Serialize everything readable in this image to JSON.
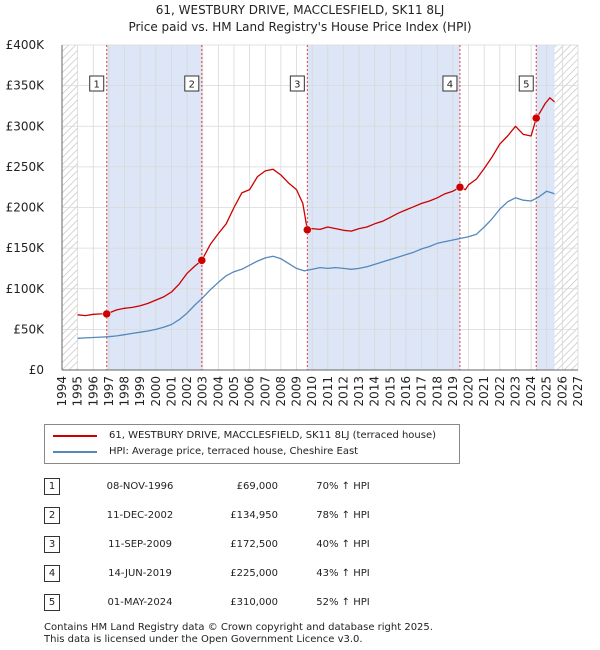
{
  "header": {
    "title": "61, WESTBURY DRIVE, MACCLESFIELD, SK11 8LJ",
    "subtitle": "Price paid vs. HM Land Registry's House Price Index (HPI)"
  },
  "colors": {
    "property": "#cc0000",
    "hpi": "#5588bb",
    "band": "#dde6f6",
    "grid": "#d8d8d8",
    "marker_line": "#dd4444"
  },
  "chart_data": {
    "type": "line",
    "title": "61, WESTBURY DRIVE, MACCLESFIELD, SK11 8LJ",
    "subtitle": "Price paid vs. HM Land Registry's House Price Index (HPI)",
    "xlim": [
      1994,
      2027
    ],
    "ylim": [
      0,
      400000
    ],
    "x_ticks": [
      1994,
      1995,
      1996,
      1997,
      1998,
      1999,
      2000,
      2001,
      2002,
      2003,
      2004,
      2005,
      2006,
      2007,
      2008,
      2009,
      2010,
      2011,
      2012,
      2013,
      2014,
      2015,
      2016,
      2017,
      2018,
      2019,
      2020,
      2021,
      2022,
      2023,
      2024,
      2025,
      2026,
      2027
    ],
    "y_ticks": [
      {
        "value": 0,
        "label": "£0"
      },
      {
        "value": 50000,
        "label": "£50K"
      },
      {
        "value": 100000,
        "label": "£100K"
      },
      {
        "value": 150000,
        "label": "£150K"
      },
      {
        "value": 200000,
        "label": "£200K"
      },
      {
        "value": 250000,
        "label": "£250K"
      },
      {
        "value": 300000,
        "label": "£300K"
      },
      {
        "value": 350000,
        "label": "£350K"
      },
      {
        "value": 400000,
        "label": "£400K"
      }
    ],
    "shaded_ranges": [
      [
        1996.86,
        2002.94
      ],
      [
        2009.69,
        2019.45
      ],
      [
        2024.33,
        2025.5
      ]
    ],
    "hatched_ranges": [
      [
        1994,
        1995.0
      ],
      [
        2025.5,
        2027
      ]
    ],
    "series": [
      {
        "name": "61, WESTBURY DRIVE, MACCLESFIELD, SK11 8LJ (terraced house)",
        "color": "#cc0000",
        "x": [
          1995.0,
          1995.5,
          1996.0,
          1996.5,
          1996.86,
          1997.5,
          1998.0,
          1998.5,
          1999.0,
          1999.5,
          2000.0,
          2000.5,
          2001.0,
          2001.5,
          2002.0,
          2002.5,
          2002.94,
          2003.5,
          2004.0,
          2004.5,
          2005.0,
          2005.5,
          2006.0,
          2006.5,
          2007.0,
          2007.5,
          2008.0,
          2008.5,
          2009.0,
          2009.4,
          2009.69,
          2010.0,
          2010.5,
          2011.0,
          2011.5,
          2012.0,
          2012.5,
          2013.0,
          2013.5,
          2014.0,
          2014.5,
          2015.0,
          2015.5,
          2016.0,
          2016.5,
          2017.0,
          2017.5,
          2018.0,
          2018.5,
          2019.0,
          2019.45,
          2019.8,
          2020.0,
          2020.5,
          2021.0,
          2021.5,
          2022.0,
          2022.5,
          2023.0,
          2023.5,
          2024.0,
          2024.33,
          2024.6,
          2024.9,
          2025.2,
          2025.5
        ],
        "y": [
          68000,
          67000,
          68500,
          69000,
          69000,
          74000,
          76000,
          77000,
          79000,
          82000,
          86000,
          90000,
          96000,
          106000,
          119000,
          128000,
          134950,
          155000,
          168000,
          180000,
          200000,
          218000,
          222000,
          238000,
          245000,
          247000,
          240000,
          230000,
          222000,
          205000,
          172500,
          174000,
          173000,
          176000,
          174000,
          172000,
          171000,
          174000,
          176000,
          180000,
          183000,
          188000,
          193000,
          197000,
          201000,
          205000,
          208000,
          212000,
          217000,
          220000,
          225000,
          222000,
          228000,
          235000,
          248000,
          262000,
          278000,
          288000,
          300000,
          290000,
          288000,
          310000,
          318000,
          328000,
          335000,
          330000
        ]
      },
      {
        "name": "HPI: Average price, terraced house, Cheshire East",
        "color": "#5588bb",
        "x": [
          1995.0,
          1995.5,
          1996.0,
          1996.5,
          1997.0,
          1997.5,
          1998.0,
          1998.5,
          1999.0,
          1999.5,
          2000.0,
          2000.5,
          2001.0,
          2001.5,
          2002.0,
          2002.5,
          2003.0,
          2003.5,
          2004.0,
          2004.5,
          2005.0,
          2005.5,
          2006.0,
          2006.5,
          2007.0,
          2007.5,
          2008.0,
          2008.5,
          2009.0,
          2009.5,
          2010.0,
          2010.5,
          2011.0,
          2011.5,
          2012.0,
          2012.5,
          2013.0,
          2013.5,
          2014.0,
          2014.5,
          2015.0,
          2015.5,
          2016.0,
          2016.5,
          2017.0,
          2017.5,
          2018.0,
          2018.5,
          2019.0,
          2019.5,
          2020.0,
          2020.5,
          2021.0,
          2021.5,
          2022.0,
          2022.5,
          2023.0,
          2023.5,
          2024.0,
          2024.5,
          2025.0,
          2025.5
        ],
        "y": [
          39000,
          39500,
          40000,
          40500,
          41000,
          42000,
          43500,
          45000,
          46500,
          48000,
          50000,
          52500,
          56000,
          62000,
          70000,
          80000,
          89000,
          99000,
          108000,
          116000,
          121000,
          124000,
          129000,
          134000,
          138000,
          140000,
          137000,
          131000,
          125000,
          122000,
          124000,
          126000,
          125000,
          126000,
          125000,
          124000,
          125000,
          127000,
          130000,
          133000,
          136000,
          139000,
          142000,
          145000,
          149000,
          152000,
          156000,
          158000,
          160000,
          162000,
          164000,
          167000,
          176000,
          186000,
          198000,
          207000,
          212000,
          209000,
          208000,
          213000,
          220000,
          217000
        ]
      }
    ],
    "sales": [
      {
        "id": "1",
        "date": "08-NOV-1996",
        "x": 1996.86,
        "price": 69000,
        "price_label": "£69,000",
        "hpi": "70% ↑ HPI"
      },
      {
        "id": "2",
        "date": "11-DEC-2002",
        "x": 2002.94,
        "price": 134950,
        "price_label": "£134,950",
        "hpi": "78% ↑ HPI"
      },
      {
        "id": "3",
        "date": "11-SEP-2009",
        "x": 2009.69,
        "price": 172500,
        "price_label": "£172,500",
        "hpi": "40% ↑ HPI"
      },
      {
        "id": "4",
        "date": "14-JUN-2019",
        "x": 2019.45,
        "price": 225000,
        "price_label": "£225,000",
        "hpi": "43% ↑ HPI"
      },
      {
        "id": "5",
        "date": "01-MAY-2024",
        "x": 2024.33,
        "price": 310000,
        "price_label": "£310,000",
        "hpi": "52% ↑ HPI"
      }
    ]
  },
  "legend": {
    "property_label": "61, WESTBURY DRIVE, MACCLESFIELD, SK11 8LJ (terraced house)",
    "hpi_label": "HPI: Average price, terraced house, Cheshire East"
  },
  "footer": {
    "line1": "Contains HM Land Registry data © Crown copyright and database right 2025.",
    "line2": "This data is licensed under the Open Government Licence v3.0."
  }
}
